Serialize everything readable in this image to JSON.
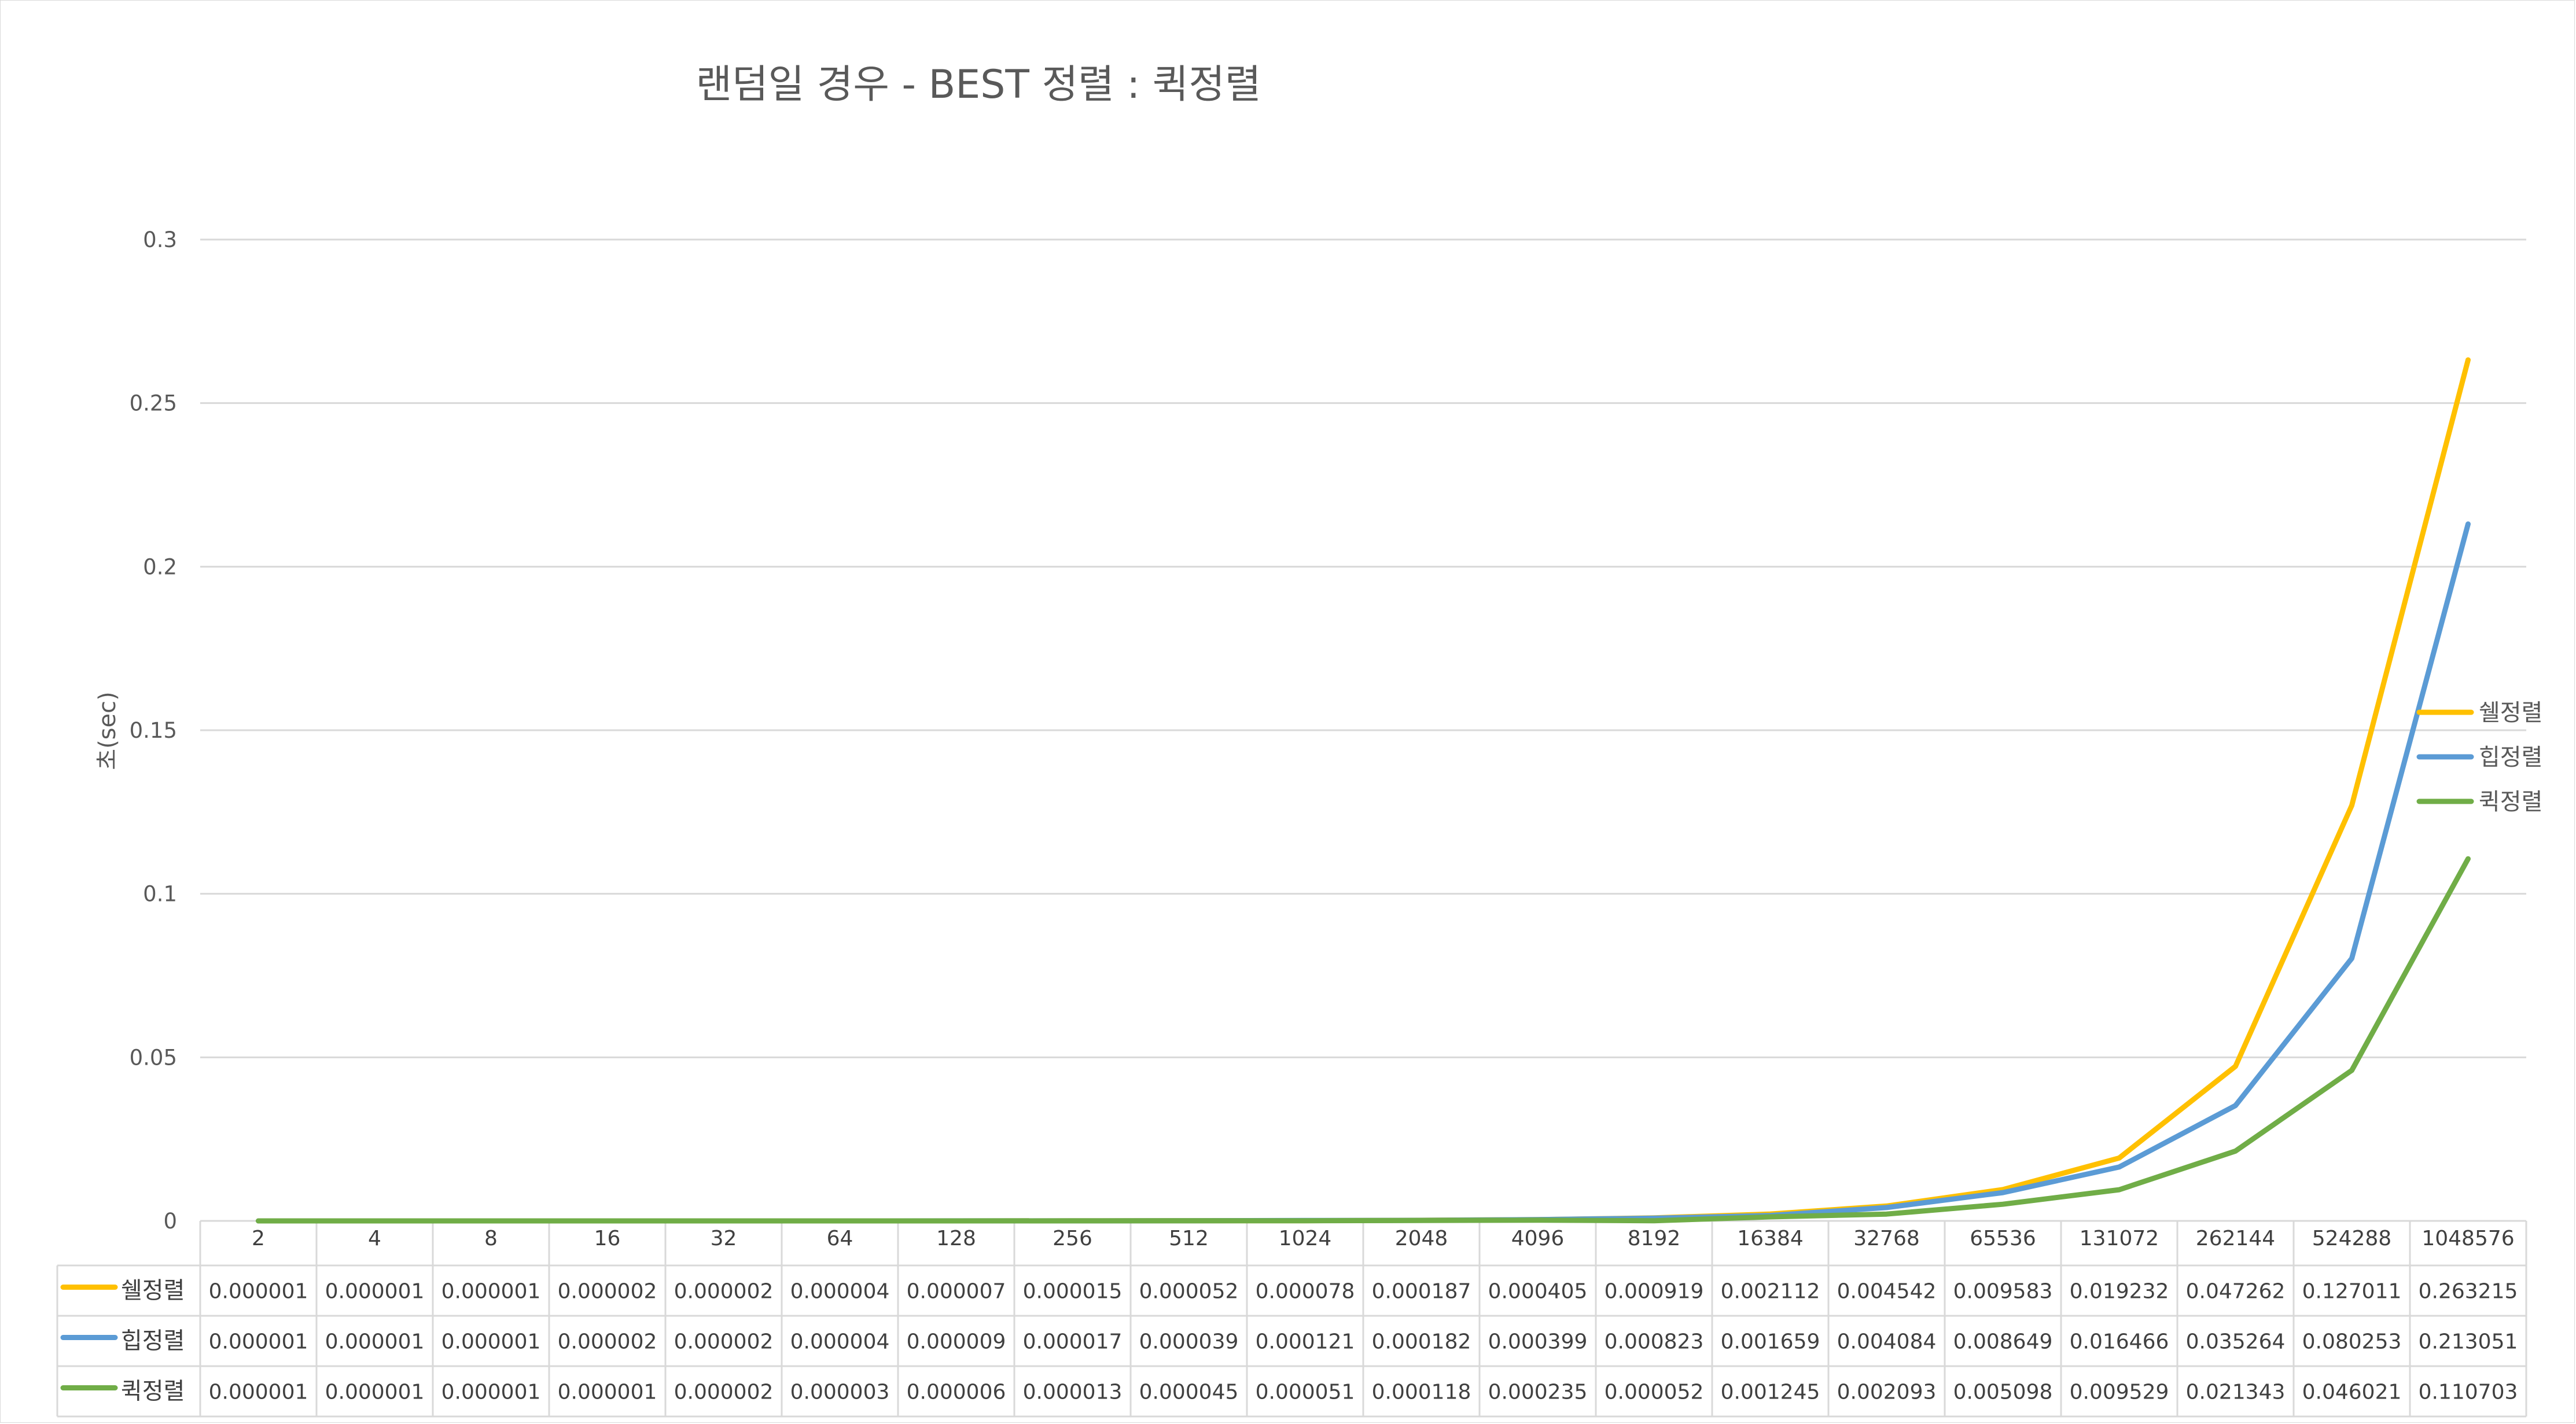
{
  "chart_data": {
    "type": "line",
    "title": "랜덤일 경우 - BEST 정렬 : 퀵정렬",
    "xlabel": "",
    "ylabel": "초(sec)",
    "ylim": [
      0,
      0.3
    ],
    "yticks": [
      "0",
      "0.05",
      "0.1",
      "0.15",
      "0.2",
      "0.25",
      "0.3"
    ],
    "grid": true,
    "legend_position": "right",
    "data_table": true,
    "categories": [
      "2",
      "4",
      "8",
      "16",
      "32",
      "64",
      "128",
      "256",
      "512",
      "1024",
      "2048",
      "4096",
      "8192",
      "16384",
      "32768",
      "65536",
      "131072",
      "262144",
      "524288",
      "1048576"
    ],
    "series": [
      {
        "name": "쉘정렬",
        "color": "#FFC000",
        "values": [
          1e-06,
          1e-06,
          1e-06,
          2e-06,
          2e-06,
          4e-06,
          7e-06,
          1.5e-05,
          5.2e-05,
          7.8e-05,
          0.000187,
          0.000405,
          0.000919,
          0.002112,
          0.004542,
          0.009583,
          0.019232,
          0.047262,
          0.127011,
          0.263215
        ],
        "labels": [
          "0.000001",
          "0.000001",
          "0.000001",
          "0.000002",
          "0.000002",
          "0.000004",
          "0.000007",
          "0.000015",
          "0.000052",
          "0.000078",
          "0.000187",
          "0.000405",
          "0.000919",
          "0.002112",
          "0.004542",
          "0.009583",
          "0.019232",
          "0.047262",
          "0.127011",
          "0.263215"
        ]
      },
      {
        "name": "힙정렬",
        "color": "#5B9BD5",
        "values": [
          1e-06,
          1e-06,
          1e-06,
          2e-06,
          2e-06,
          4e-06,
          9e-06,
          1.7e-05,
          3.9e-05,
          0.000121,
          0.000182,
          0.000399,
          0.000823,
          0.001659,
          0.004084,
          0.008649,
          0.016466,
          0.035264,
          0.080253,
          0.213051
        ],
        "labels": [
          "0.000001",
          "0.000001",
          "0.000001",
          "0.000002",
          "0.000002",
          "0.000004",
          "0.000009",
          "0.000017",
          "0.000039",
          "0.000121",
          "0.000182",
          "0.000399",
          "0.000823",
          "0.001659",
          "0.004084",
          "0.008649",
          "0.016466",
          "0.035264",
          "0.080253",
          "0.213051"
        ]
      },
      {
        "name": "퀵정렬",
        "color": "#70AD47",
        "values": [
          1e-06,
          1e-06,
          1e-06,
          1e-06,
          2e-06,
          3e-06,
          6e-06,
          1.3e-05,
          4.5e-05,
          5.1e-05,
          0.000118,
          0.000235,
          5.2e-05,
          0.001245,
          0.002093,
          0.005098,
          0.009529,
          0.021343,
          0.046021,
          0.110703
        ],
        "labels": [
          "0.000001",
          "0.000001",
          "0.000001",
          "0.000001",
          "0.000002",
          "0.000003",
          "0.000006",
          "0.000013",
          "0.000045",
          "0.000051",
          "0.000118",
          "0.000235",
          "0.000052",
          "0.001245",
          "0.002093",
          "0.005098",
          "0.009529",
          "0.021343",
          "0.046021",
          "0.110703"
        ]
      }
    ]
  }
}
